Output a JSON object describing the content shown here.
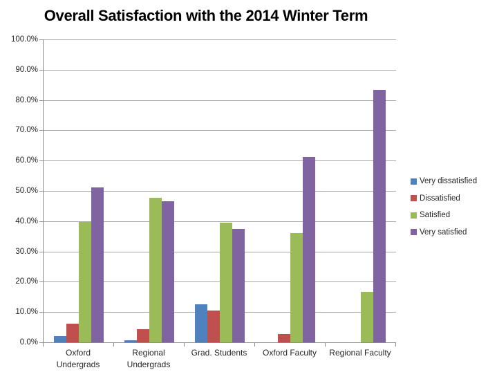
{
  "chart_data": {
    "type": "bar",
    "title": "Overall Satisfaction with the 2014 Winter Term",
    "categories": [
      "Oxford Undergrads",
      "Regional Undergrads",
      "Grad. Students",
      "Oxford Faculty",
      "Regional Faculty"
    ],
    "category_label_lines": [
      [
        "Oxford",
        "Undergrads"
      ],
      [
        "Regional",
        "Undergrads"
      ],
      [
        "Grad. Students"
      ],
      [
        "Oxford Faculty"
      ],
      [
        "Regional Faculty"
      ]
    ],
    "series": [
      {
        "name": "Very dissatisfied",
        "color": "#4F81BD",
        "values": [
          2.0,
          0.6,
          12.5,
          0,
          0
        ]
      },
      {
        "name": "Dissatisfied",
        "color": "#C0504D",
        "values": [
          6.2,
          4.3,
          10.4,
          2.8,
          0
        ]
      },
      {
        "name": "Satisfied",
        "color": "#9BBB59",
        "values": [
          39.8,
          47.8,
          39.6,
          36.1,
          16.7
        ]
      },
      {
        "name": "Very satisfied",
        "color": "#8064A2",
        "values": [
          51.2,
          46.5,
          37.5,
          61.1,
          83.3
        ]
      }
    ],
    "ylabel": "",
    "xlabel": "",
    "ylim": [
      0,
      100
    ],
    "y_tick_step": 10,
    "y_ticks": [
      "0.0%",
      "10.0%",
      "20.0%",
      "30.0%",
      "40.0%",
      "50.0%",
      "60.0%",
      "70.0%",
      "80.0%",
      "90.0%",
      "100.0%"
    ],
    "grid": true,
    "legend_position": "right",
    "colors": {
      "gridline": "#A6A6A6",
      "axis_line": "#8C8C8C",
      "axis_text": "#262626",
      "title_text": "#000000",
      "background": "#FFFFFF"
    }
  }
}
